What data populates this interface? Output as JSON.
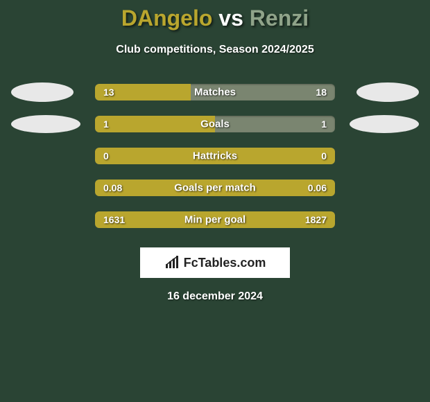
{
  "title": {
    "p1": "DAngelo",
    "vs": " vs ",
    "p2": "Renzi",
    "p1_color": "#b9a62e",
    "p2_color": "#8fa389",
    "fontsize": 32
  },
  "subtitle": "Club competitions, Season 2024/2025",
  "background_color": "#2a4434",
  "bar": {
    "track_width": 346,
    "track_height": 24,
    "track_color": "#7a8570",
    "fill_color": "#b9a62e",
    "label_fontsize": 15,
    "value_fontsize": 14,
    "text_color": "#ffffff"
  },
  "ellipses": {
    "color": "#e8e8e8",
    "sizes": [
      {
        "w": 90,
        "h": 28
      },
      {
        "w": 100,
        "h": 26
      }
    ]
  },
  "rows": [
    {
      "label": "Matches",
      "left": "13",
      "right": "18",
      "fill_pct": 40,
      "show_ellipses": true,
      "ellipse_idx": 0
    },
    {
      "label": "Goals",
      "left": "1",
      "right": "1",
      "fill_pct": 50,
      "show_ellipses": true,
      "ellipse_idx": 1
    },
    {
      "label": "Hattricks",
      "left": "0",
      "right": "0",
      "fill_pct": 100,
      "show_ellipses": false
    },
    {
      "label": "Goals per match",
      "left": "0.08",
      "right": "0.06",
      "fill_pct": 100,
      "show_ellipses": false
    },
    {
      "label": "Min per goal",
      "left": "1631",
      "right": "1827",
      "fill_pct": 100,
      "show_ellipses": false
    }
  ],
  "logo": {
    "text": "FcTables.com",
    "box_bg": "#ffffff",
    "text_color": "#222222",
    "icon_color": "#222222"
  },
  "date": "16 december 2024"
}
